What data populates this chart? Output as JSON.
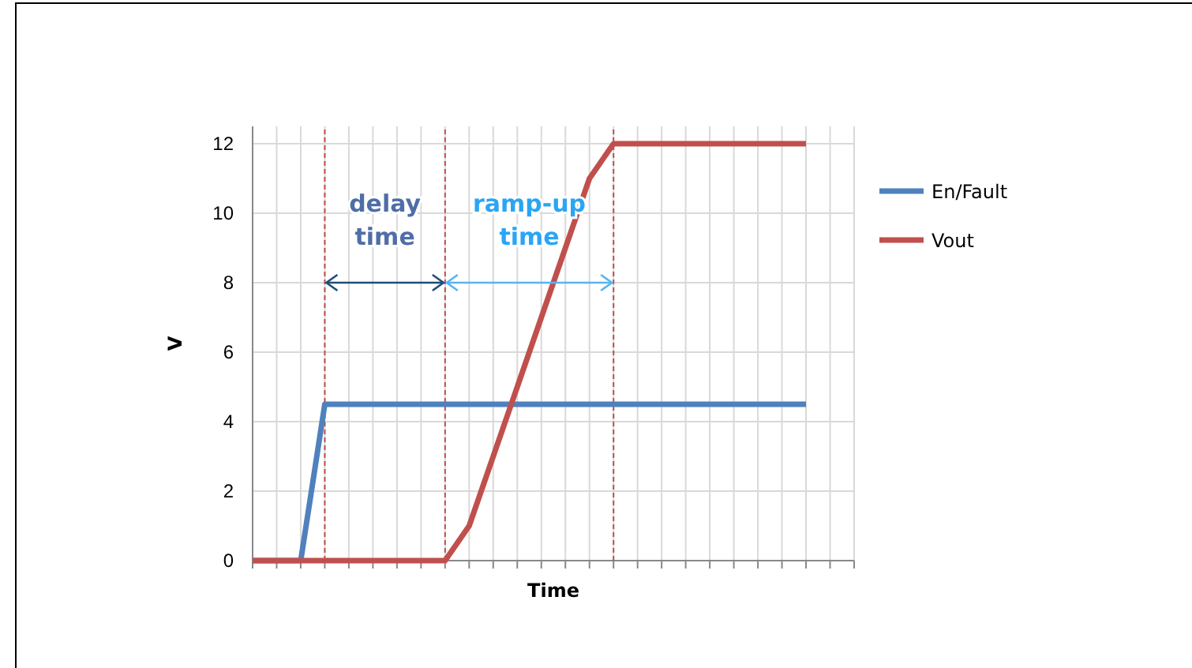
{
  "chart_data": {
    "type": "line",
    "xlabel": "Time",
    "ylabel": "V",
    "categories": [
      null,
      null,
      null,
      null,
      null,
      null,
      null,
      null,
      null,
      null,
      null,
      null,
      null,
      null,
      null,
      null,
      null,
      null,
      null,
      null,
      null,
      null,
      null,
      null,
      null,
      null
    ],
    "series": [
      {
        "name": "En/Fault",
        "color": "#4f81bd",
        "values": [
          0,
          0,
          0,
          4.5,
          4.5,
          4.5,
          4.5,
          4.5,
          4.5,
          4.5,
          4.5,
          4.5,
          4.5,
          4.5,
          4.5,
          4.5,
          4.5,
          4.5,
          4.5,
          4.5,
          4.5,
          4.5,
          4.5,
          4.5,
          null,
          null
        ]
      },
      {
        "name": "Vout",
        "color": "#c0504d",
        "values": [
          0,
          0,
          0,
          0,
          0,
          0,
          0,
          0,
          0,
          1,
          3,
          5,
          7,
          9,
          11,
          12,
          12,
          12,
          12,
          12,
          12,
          12,
          12,
          12,
          null,
          null
        ]
      }
    ],
    "ylim": [
      0,
      12.5
    ],
    "yticks": [
      0,
      2,
      4,
      6,
      8,
      10,
      12
    ],
    "grid": true,
    "legend": "right",
    "marker": "none",
    "line_style": "solid",
    "annotations": [
      "delay time",
      "ramp-up time"
    ]
  }
}
